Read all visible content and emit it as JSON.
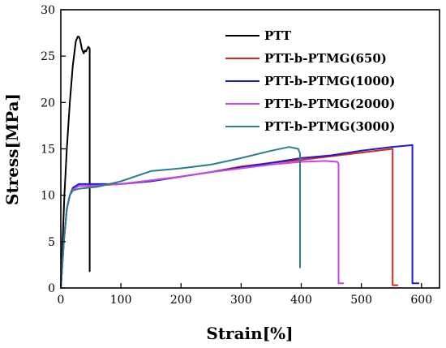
{
  "chart_data": {
    "type": "line",
    "xlabel": "Strain[%]",
    "ylabel": "Stress[MPa]",
    "xlim": [
      0,
      630
    ],
    "ylim": [
      0,
      30
    ],
    "xticks": [
      0,
      100,
      200,
      300,
      400,
      500,
      600
    ],
    "yticks": [
      0,
      5,
      10,
      15,
      20,
      25,
      30
    ],
    "legend_position": "top-right",
    "series": [
      {
        "name": "PTT",
        "color": "#000000",
        "x": [
          0,
          3,
          6,
          10,
          15,
          20,
          25,
          28,
          30,
          32,
          35,
          38,
          40,
          42,
          44,
          46,
          47,
          48,
          48
        ],
        "y": [
          0,
          5,
          10,
          15,
          20,
          24,
          26.6,
          27.1,
          27.1,
          26.8,
          25.8,
          25.3,
          25.6,
          25.5,
          25.8,
          26.0,
          25.9,
          25.8,
          1.8
        ]
      },
      {
        "name": "PTT-b-PTMG(650)",
        "color": "#d42a1e",
        "x": [
          0,
          5,
          10,
          15,
          20,
          30,
          50,
          100,
          150,
          200,
          250,
          300,
          350,
          400,
          450,
          500,
          552,
          552,
          560
        ],
        "y": [
          0,
          5,
          8.5,
          10,
          10.6,
          11.0,
          11.0,
          11.2,
          11.6,
          12.0,
          12.5,
          13.1,
          13.5,
          13.8,
          14.2,
          14.6,
          15.0,
          0.3,
          0.3
        ]
      },
      {
        "name": "PTT-b-PTMG(1000)",
        "color": "#1b1bd0",
        "x": [
          0,
          5,
          10,
          15,
          20,
          30,
          50,
          100,
          150,
          200,
          250,
          300,
          350,
          400,
          450,
          500,
          550,
          585,
          585,
          595
        ],
        "y": [
          0,
          5,
          8.5,
          10,
          10.8,
          11.2,
          11.2,
          11.2,
          11.5,
          12.0,
          12.5,
          13.0,
          13.5,
          14.0,
          14.3,
          14.8,
          15.2,
          15.4,
          0.5,
          0.5
        ]
      },
      {
        "name": "PTT-b-PTMG(2000)",
        "color": "#c447e8",
        "x": [
          0,
          5,
          10,
          15,
          20,
          30,
          50,
          100,
          150,
          200,
          250,
          300,
          350,
          400,
          440,
          460,
          462,
          462,
          470
        ],
        "y": [
          0,
          5,
          8.5,
          10,
          10.6,
          11.0,
          11.0,
          11.2,
          11.6,
          12.0,
          12.5,
          12.9,
          13.3,
          13.6,
          13.7,
          13.6,
          13.4,
          0.5,
          0.5
        ]
      },
      {
        "name": "PTT-b-PTMG(3000)",
        "color": "#2a7f8c",
        "x": [
          0,
          5,
          10,
          15,
          20,
          30,
          45,
          60,
          100,
          150,
          200,
          250,
          300,
          350,
          380,
          395,
          398,
          398
        ],
        "y": [
          0,
          5,
          8.5,
          10,
          10.5,
          10.7,
          10.8,
          10.9,
          11.5,
          12.6,
          12.9,
          13.3,
          14.0,
          14.8,
          15.2,
          15.0,
          14.5,
          2.2
        ]
      }
    ]
  }
}
